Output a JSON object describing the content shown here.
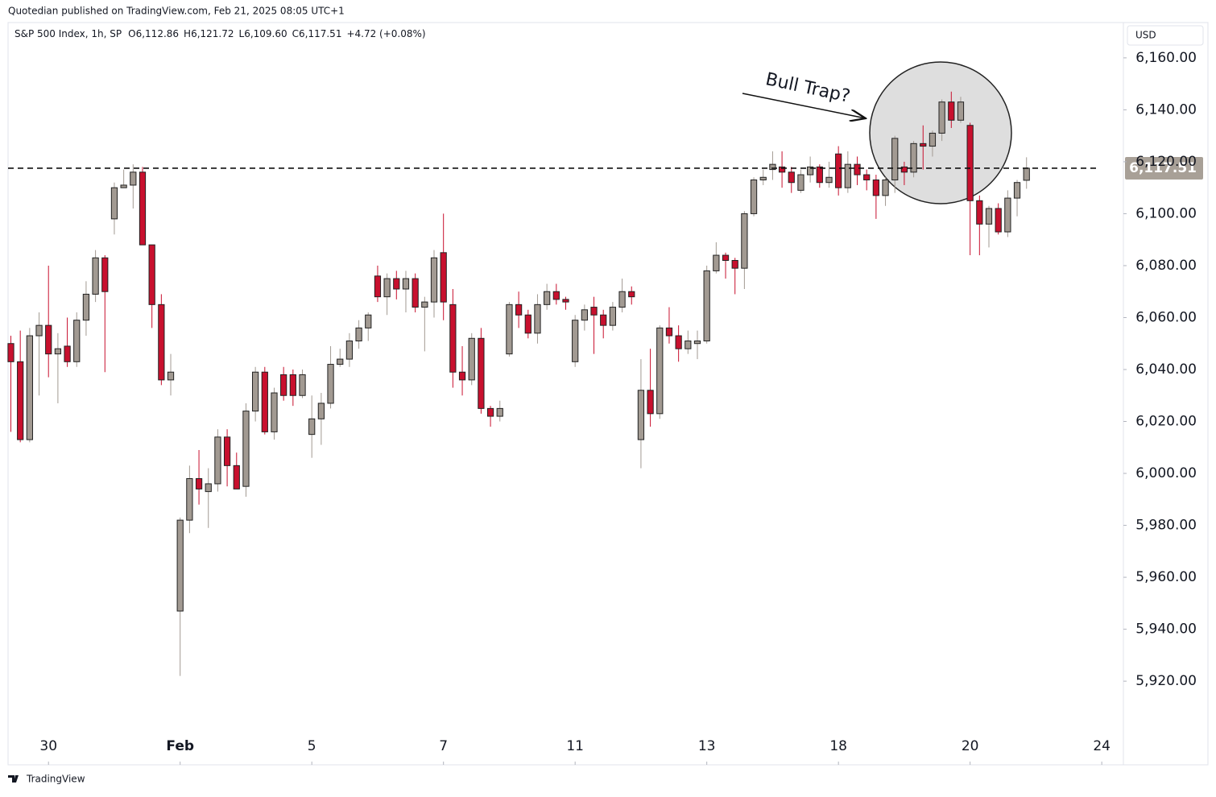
{
  "header": {
    "publisher": "Quotedian published on TradingView.com, Feb 21, 2025 08:05 UTC+1"
  },
  "footer": {
    "logo": "TradingView"
  },
  "chart_data": {
    "type": "candlestick",
    "legend": {
      "symbol": "S&P 500 Index, 1h, SP",
      "items": [
        {
          "key": "O",
          "label": "6,112.86"
        },
        {
          "key": "H",
          "label": "6,121.72"
        },
        {
          "key": "L",
          "label": "6,109.60"
        },
        {
          "key": "C",
          "label": "6,117.51"
        }
      ],
      "change": "+4.72 (+0.08%)"
    },
    "currency": "USD",
    "price_label": "6,117.51",
    "annotation": "Bull Trap?",
    "up_color": "#a29a92",
    "down_color": "#c8102e",
    "open": [
      6050,
      6043,
      6013,
      6053,
      6057,
      6046,
      6049,
      6043,
      6059,
      6069,
      6083,
      6098,
      6110,
      6111,
      6116,
      6088,
      6065,
      6036,
      5947,
      5982,
      5998,
      5993,
      5996,
      6014,
      6003,
      5995,
      6024,
      6039,
      6016,
      6038,
      6038,
      6030,
      6015,
      6021,
      6027,
      6042,
      6044,
      6051,
      6056,
      6076,
      6068,
      6075,
      6071,
      6075,
      6064,
      6066,
      6085,
      6065,
      6039,
      6036,
      6052,
      6025,
      6022,
      6046,
      6065,
      6061,
      6054,
      6065,
      6070,
      6067,
      6043,
      6059,
      6064,
      6061,
      6057,
      6064,
      6070,
      6013,
      6032,
      6023,
      6056,
      6053,
      6048,
      6050,
      6051,
      6078,
      6084,
      6082,
      6079,
      6100,
      6113,
      6117,
      6118,
      6116,
      6109,
      6115,
      6118,
      6112,
      6123,
      6110,
      6119,
      6115,
      6113,
      6107,
      6113,
      6118,
      6116,
      6127,
      6126,
      6131,
      6143,
      6136,
      6134,
      6105,
      6096,
      6102,
      6093,
      6106,
      6112.86
    ],
    "high": [
      6053,
      6055,
      6056,
      6062,
      6080,
      6054,
      6060,
      6062,
      6074,
      6086,
      6084,
      6112,
      6117,
      6119,
      6118,
      6088,
      6069,
      6046,
      5983,
      6003,
      6009,
      6002,
      6017,
      6017,
      6008,
      6027,
      6041,
      6041,
      6033,
      6041,
      6040,
      6040,
      6030,
      6031,
      6049,
      6048,
      6054,
      6059,
      6062,
      6080,
      6077,
      6078,
      6078,
      6077,
      6068,
      6086,
      6100,
      6071,
      6049,
      6054,
      6056,
      6026,
      6028,
      6066,
      6070,
      6063,
      6069,
      6073,
      6073,
      6068,
      6061,
      6065,
      6068,
      6063,
      6066,
      6075,
      6072,
      6044,
      6048,
      6057,
      6064,
      6057,
      6055,
      6055,
      6080,
      6089,
      6085,
      6083,
      6101,
      6114,
      6117,
      6124,
      6124,
      6118,
      6117,
      6122,
      6119,
      6120,
      6126,
      6124,
      6122,
      6117,
      6115,
      6114,
      6130,
      6120,
      6128,
      6134,
      6132,
      6144,
      6147,
      6145,
      6135,
      6107,
      6103,
      6104,
      6109,
      6113,
      6121.72
    ],
    "low": [
      6016,
      6012,
      6012,
      6030,
      6037,
      6027,
      6041,
      6041,
      6053,
      6066,
      6039,
      6092,
      6110,
      6102,
      6088,
      6056,
      6034,
      6030,
      5922,
      5977,
      5988,
      5979,
      5993,
      5995,
      5994,
      5991,
      6020,
      6015,
      6013,
      6028,
      6026,
      6029,
      6006,
      6011,
      6025,
      6041,
      6041,
      6048,
      6051,
      6066,
      6061,
      6067,
      6062,
      6062,
      6047,
      6060,
      6059,
      6033,
      6030,
      6034,
      6023,
      6018,
      6020,
      6045,
      6056,
      6052,
      6050,
      6063,
      6065,
      6063,
      6041,
      6055,
      6046,
      6052,
      6055,
      6062,
      6065,
      6002,
      6018,
      6021,
      6050,
      6043,
      6046,
      6044,
      6050,
      6077,
      6075,
      6069,
      6071,
      6099,
      6111,
      6113,
      6110,
      6108,
      6108,
      6112,
      6110,
      6110,
      6107,
      6108,
      6111,
      6109,
      6098,
      6103,
      6108,
      6111,
      6114,
      6117,
      6122,
      6128,
      6133,
      6135,
      6084,
      6084,
      6087,
      6092,
      6091,
      6099,
      6109.6
    ],
    "close": [
      6043,
      6013,
      6053,
      6057,
      6046,
      6048,
      6043,
      6059,
      6069,
      6083,
      6070,
      6110,
      6111,
      6116,
      6088,
      6065,
      6036,
      6039,
      5982,
      5998,
      5994,
      5996,
      6014,
      6003,
      5994,
      6024,
      6039,
      6016,
      6031,
      6030,
      6030,
      6038,
      6021,
      6027,
      6042,
      6044,
      6051,
      6056,
      6061,
      6068,
      6075,
      6071,
      6075,
      6064,
      6066,
      6083,
      6066,
      6039,
      6036,
      6052,
      6025,
      6022,
      6025,
      6065,
      6061,
      6054,
      6065,
      6070,
      6067,
      6066,
      6059,
      6063,
      6061,
      6057,
      6064,
      6070,
      6068,
      6032,
      6023,
      6056,
      6053,
      6048,
      6051,
      6051,
      6078,
      6084,
      6082,
      6079,
      6100,
      6113,
      6114,
      6119,
      6116,
      6112,
      6115,
      6118,
      6112,
      6114,
      6110,
      6119,
      6115,
      6113,
      6107,
      6113,
      6129,
      6116,
      6127,
      6126,
      6131,
      6143,
      6136,
      6143,
      6105,
      6096,
      6102,
      6093,
      6106,
      6112,
      6117.51
    ],
    "xlim": [
      -0.3,
      118.3
    ],
    "xticks": [
      {
        "value": 4,
        "label": "30"
      },
      {
        "value": 18,
        "label": "Feb"
      },
      {
        "value": 32,
        "label": "5"
      },
      {
        "value": 46,
        "label": "7"
      },
      {
        "value": 60,
        "label": "11"
      },
      {
        "value": 74,
        "label": "13"
      },
      {
        "value": 88,
        "label": "18"
      },
      {
        "value": 102,
        "label": "20"
      },
      {
        "value": 116,
        "label": "24"
      }
    ],
    "ylim": [
      5887.8,
      6173.6
    ],
    "yticks": [
      {
        "value": 5920,
        "label": "5,920.00"
      },
      {
        "value": 5940,
        "label": "5,940.00"
      },
      {
        "value": 5960,
        "label": "5,960.00"
      },
      {
        "value": 5980,
        "label": "5,980.00"
      },
      {
        "value": 6000,
        "label": "6,000.00"
      },
      {
        "value": 6020,
        "label": "6,020.00"
      },
      {
        "value": 6040,
        "label": "6,040.00"
      },
      {
        "value": 6060,
        "label": "6,060.00"
      },
      {
        "value": 6080,
        "label": "6,080.00"
      },
      {
        "value": 6100,
        "label": "6,100.00"
      },
      {
        "value": 6120,
        "label": "6,120.00"
      },
      {
        "value": 6140,
        "label": "6,140.00"
      },
      {
        "value": 6160,
        "label": "6,160.00"
      }
    ],
    "grid": false
  }
}
